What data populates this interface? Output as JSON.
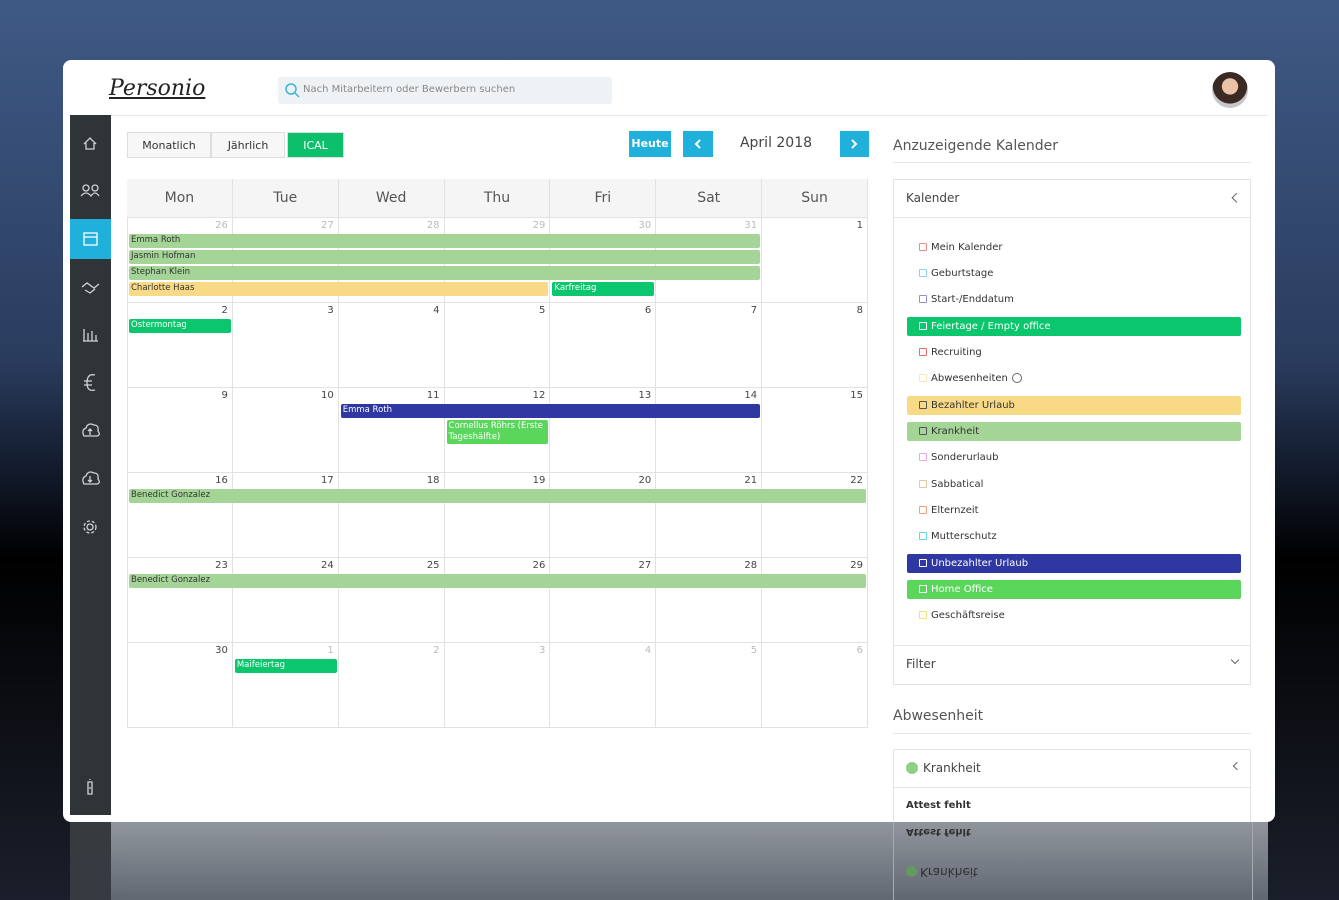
{
  "header": {
    "logo": "Personio",
    "search_placeholder": "Nach Mitarbeitern oder Bewerbern suchen"
  },
  "toolbar": {
    "views": [
      "Monatlich",
      "Jährlich",
      "ICAL"
    ],
    "today": "Heute",
    "month": "April 2018"
  },
  "calendar": {
    "weekdays": [
      "Mon",
      "Tue",
      "Wed",
      "Thu",
      "Fri",
      "Sat",
      "Sun"
    ],
    "weeks": [
      {
        "days": [
          26,
          27,
          28,
          29,
          30,
          31,
          1
        ],
        "events": [
          {
            "label": "Emma Roth",
            "start": "Mon",
            "end": "Sat",
            "calendar": "Krankheit"
          },
          {
            "label": "Jasmin Hofman",
            "start": "Mon",
            "end": "Sat",
            "calendar": "Krankheit"
          },
          {
            "label": "Stephan Klein",
            "start": "Mon",
            "end": "Sat",
            "calendar": "Krankheit"
          },
          {
            "label": "Charlotte Haas",
            "start": "Mon",
            "end": "Thu",
            "calendar": "Bezahlter Urlaub"
          },
          {
            "label": "Karfreitag",
            "start": "Fri",
            "end": "Fri",
            "calendar": "Feiertage / Empty office"
          }
        ]
      },
      {
        "days": [
          2,
          3,
          4,
          5,
          6,
          7,
          8
        ],
        "events": [
          {
            "label": "Ostermontag",
            "start": "Mon",
            "end": "Mon",
            "calendar": "Feiertage / Empty office"
          }
        ]
      },
      {
        "days": [
          9,
          10,
          11,
          12,
          13,
          14,
          15
        ],
        "events": [
          {
            "label": "Emma Roth",
            "start": "Wed",
            "end": "Sat",
            "calendar": "Unbezahlter Urlaub"
          },
          {
            "label": "Cornellus Röhrs (Erste Tageshälfte)",
            "start": "Thu",
            "end": "Thu",
            "calendar": "Home Office"
          }
        ]
      },
      {
        "days": [
          16,
          17,
          18,
          19,
          20,
          21,
          22
        ],
        "events": [
          {
            "label": "Benedict Gonzalez",
            "start": "Mon",
            "end": "Sun",
            "calendar": "Krankheit"
          }
        ]
      },
      {
        "days": [
          23,
          24,
          25,
          26,
          27,
          28,
          29
        ],
        "events": [
          {
            "label": "Benedict Gonzalez",
            "start": "Mon",
            "end": "Sun",
            "calendar": "Krankheit"
          }
        ]
      },
      {
        "days": [
          30,
          1,
          2,
          3,
          4,
          5,
          6
        ],
        "events": [
          {
            "label": "Maifeiertag",
            "start": "Tue",
            "end": "Tue",
            "calendar": "Feiertage / Empty office"
          }
        ]
      }
    ]
  },
  "sidebar": {
    "title": "Anzuzeigende Kalender",
    "kalender": {
      "title": "Kalender",
      "items": [
        {
          "label": "Mein Kalender",
          "color": "#f08a8a",
          "active": false
        },
        {
          "label": "Geburtstage",
          "color": "#8fd0ee",
          "active": false
        },
        {
          "label": "Start-/Enddatum",
          "color": "#9a8fd6",
          "active": false
        },
        {
          "label": "Feiertage / Empty office",
          "color": "#0bc66c",
          "active": true
        },
        {
          "label": "Recruiting",
          "color": "#e86a6a",
          "active": false
        },
        {
          "label": "Abwesenheiten",
          "color": "#f2e9b8",
          "active": false
        },
        {
          "label": "Bezahlter Urlaub",
          "color": "#f8da86",
          "active": true
        },
        {
          "label": "Krankheit",
          "color": "#a4d597",
          "active": true
        },
        {
          "label": "Sonderurlaub",
          "color": "#f2a6d8",
          "active": false
        },
        {
          "label": "Sabbatical",
          "color": "#e6c9a2",
          "active": false
        },
        {
          "label": "Elternzeit",
          "color": "#f3a07a",
          "active": false
        },
        {
          "label": "Mutterschutz",
          "color": "#62d6e8",
          "active": false
        },
        {
          "label": "Unbezahlter Urlaub",
          "color": "#2f37a3",
          "active": true
        },
        {
          "label": "Home Office",
          "color": "#5ad65c",
          "active": true
        },
        {
          "label": "Geschäftsreise",
          "color": "#f0e07a",
          "active": false
        }
      ]
    },
    "filter": "Filter",
    "absence": {
      "title": "Abwesenheit",
      "type": "Krankheit",
      "status": "Attest fehlt"
    }
  }
}
